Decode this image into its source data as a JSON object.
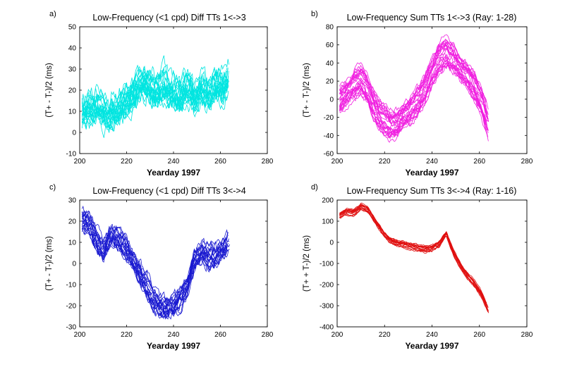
{
  "chart_data": [
    {
      "panel_label": "a)",
      "type": "line",
      "title": "Low-Frequency (<1 cpd) Diff TTs 1<->3",
      "xlabel": "Yearday 1997",
      "ylabel": "(T+ - T-)/2 (ms)",
      "xlim": [
        200,
        280
      ],
      "ylim": [
        -10,
        50
      ],
      "xticks": [
        "200",
        "220",
        "240",
        "260",
        "280"
      ],
      "yticks": [
        "-10",
        "0",
        "10",
        "20",
        "30",
        "40",
        "50"
      ],
      "color": "#00e5e0",
      "grid": false,
      "data_xrange": [
        201,
        264
      ],
      "n_series": 22,
      "spread": 6,
      "noise": 3.5,
      "mean_curve": {
        "x": [
          201,
          205,
          208,
          212,
          215,
          218,
          221,
          224,
          227,
          230,
          233,
          236,
          240,
          243,
          246,
          249,
          252,
          255,
          258,
          261,
          263,
          264
        ],
        "y": [
          11,
          12,
          13,
          9,
          11,
          14,
          16,
          21,
          25,
          23,
          20,
          23,
          19,
          18,
          22,
          17,
          23,
          19,
          23,
          22,
          25,
          28
        ]
      }
    },
    {
      "panel_label": "b)",
      "type": "line",
      "title": "Low-Frequency Sum TTs 1<->3 (Ray: 1-28)",
      "xlabel": "Yearday 1997",
      "ylabel": "(T+ - T-)/2 (ms)",
      "xlim": [
        200,
        280
      ],
      "ylim": [
        -60,
        80
      ],
      "xticks": [
        "200",
        "220",
        "240",
        "260",
        "280"
      ],
      "yticks": [
        "-60",
        "-40",
        "-20",
        "0",
        "20",
        "40",
        "60",
        "80"
      ],
      "color": "#f020e0",
      "grid": false,
      "data_xrange": [
        201,
        264
      ],
      "n_series": 28,
      "spread": 13,
      "noise": 3,
      "mean_curve": {
        "x": [
          201,
          204,
          207,
          210,
          213,
          216,
          219,
          222,
          225,
          228,
          231,
          234,
          237,
          240,
          243,
          246,
          249,
          252,
          255,
          258,
          261,
          264
        ],
        "y": [
          -2,
          8,
          15,
          20,
          8,
          -10,
          -22,
          -30,
          -28,
          -18,
          -12,
          -4,
          10,
          30,
          45,
          50,
          45,
          35,
          25,
          12,
          -5,
          -30
        ]
      }
    },
    {
      "panel_label": "c)",
      "type": "line",
      "title": "Low-Frequency (<1 cpd) Diff TTs 3<->4",
      "xlabel": "Yearday 1997",
      "ylabel": "(T+ - T-)/2 (ms)",
      "xlim": [
        200,
        280
      ],
      "ylim": [
        -30,
        30
      ],
      "xticks": [
        "200",
        "220",
        "240",
        "260",
        "280"
      ],
      "yticks": [
        "-30",
        "-20",
        "-10",
        "0",
        "10",
        "20",
        "30"
      ],
      "color": "#1a1ad0",
      "grid": false,
      "data_xrange": [
        201,
        264
      ],
      "n_series": 20,
      "spread": 4,
      "noise": 2,
      "mean_curve": {
        "x": [
          201,
          204,
          207,
          210,
          213,
          216,
          219,
          222,
          225,
          228,
          231,
          234,
          237,
          240,
          243,
          246,
          249,
          252,
          255,
          258,
          261,
          264
        ],
        "y": [
          21,
          19,
          12,
          6,
          13,
          12,
          8,
          3,
          -3,
          -10,
          -16,
          -20,
          -21,
          -20,
          -17,
          -10,
          2,
          5,
          3,
          4,
          7,
          10
        ]
      }
    },
    {
      "panel_label": "d)",
      "type": "line",
      "title": "Low-Frequency Sum TTs 3<->4 (Ray: 1-16)",
      "xlabel": "Yearday 1997",
      "ylabel": "(T+ + T-)/2 (ms)",
      "xlim": [
        200,
        280
      ],
      "ylim": [
        -400,
        200
      ],
      "xticks": [
        "200",
        "220",
        "240",
        "260",
        "280"
      ],
      "yticks": [
        "-400",
        "-300",
        "-200",
        "-100",
        "0",
        "100",
        "200"
      ],
      "color": "#e01010",
      "grid": false,
      "data_xrange": [
        201,
        264
      ],
      "n_series": 16,
      "spread": 12,
      "noise": 4,
      "mean_curve": {
        "x": [
          201,
          204,
          207,
          210,
          213,
          216,
          219,
          222,
          225,
          228,
          231,
          234,
          237,
          240,
          243,
          246,
          249,
          252,
          255,
          258,
          261,
          264
        ],
        "y": [
          125,
          145,
          140,
          165,
          150,
          100,
          50,
          10,
          -5,
          -10,
          -20,
          -30,
          -35,
          -30,
          -10,
          40,
          -50,
          -110,
          -160,
          -200,
          -250,
          -330
        ]
      }
    }
  ]
}
